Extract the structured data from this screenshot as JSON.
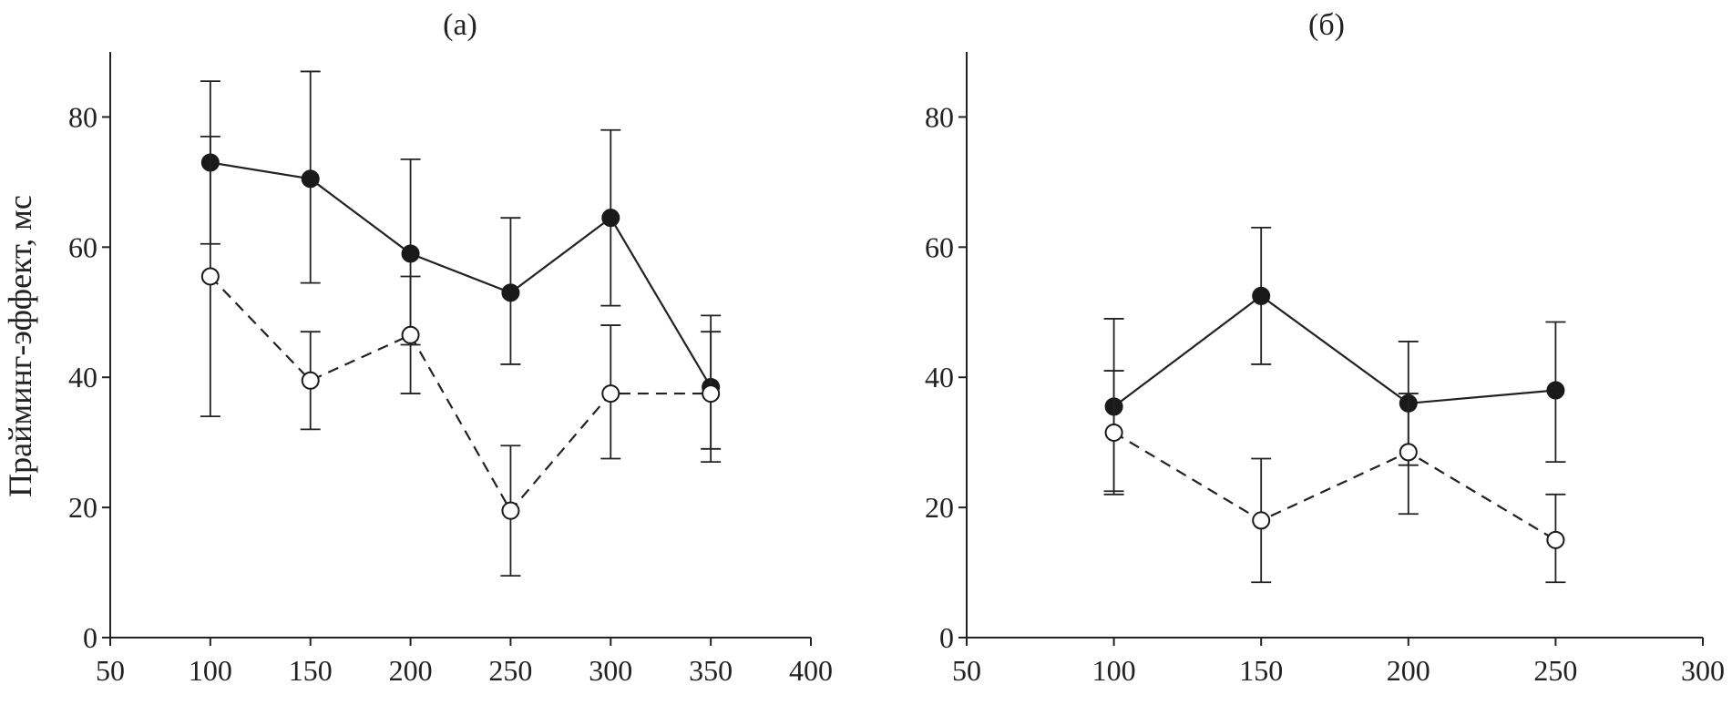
{
  "figure": {
    "ylabel": "Прайминг-эффект, мс"
  },
  "chart_data": [
    {
      "type": "line",
      "title": "(а)",
      "xlim": [
        50,
        400
      ],
      "ylim": [
        0,
        90
      ],
      "xticks": [
        50,
        100,
        150,
        200,
        250,
        300,
        350,
        400
      ],
      "yticks": [
        0,
        20,
        40,
        60,
        80
      ],
      "grid": false,
      "series": [
        {
          "marker": "filled-circle",
          "line": "solid",
          "x": [
            100,
            150,
            200,
            250,
            300,
            350
          ],
          "y": [
            73,
            70.5,
            59,
            53,
            64.5,
            38.5
          ],
          "err_low": [
            60.5,
            54.5,
            45,
            42,
            51,
            29
          ],
          "err_high": [
            85.5,
            87,
            73.5,
            64.5,
            78,
            47
          ]
        },
        {
          "marker": "open-circle",
          "line": "dashed",
          "x": [
            100,
            150,
            200,
            250,
            300,
            350
          ],
          "y": [
            55.5,
            39.5,
            46.5,
            19.5,
            37.5,
            37.5
          ],
          "err_low": [
            34,
            32,
            37.5,
            9.5,
            27.5,
            27
          ],
          "err_high": [
            77,
            47,
            55.5,
            29.5,
            48,
            49.5
          ]
        }
      ]
    },
    {
      "type": "line",
      "title": "(б)",
      "xlim": [
        50,
        300
      ],
      "ylim": [
        0,
        90
      ],
      "xticks": [
        50,
        100,
        150,
        200,
        250,
        300
      ],
      "yticks": [
        0,
        20,
        40,
        60,
        80
      ],
      "grid": false,
      "series": [
        {
          "marker": "filled-circle",
          "line": "solid",
          "x": [
            100,
            150,
            200,
            250
          ],
          "y": [
            35.5,
            52.5,
            36,
            38
          ],
          "err_low": [
            22.5,
            42,
            26.5,
            27
          ],
          "err_high": [
            49,
            63,
            45.5,
            48.5
          ]
        },
        {
          "marker": "open-circle",
          "line": "dashed",
          "x": [
            100,
            150,
            200,
            250
          ],
          "y": [
            31.5,
            18,
            28.5,
            15
          ],
          "err_low": [
            22,
            8.5,
            19,
            8.5
          ],
          "err_high": [
            41,
            27.5,
            37.5,
            22
          ]
        }
      ]
    }
  ]
}
